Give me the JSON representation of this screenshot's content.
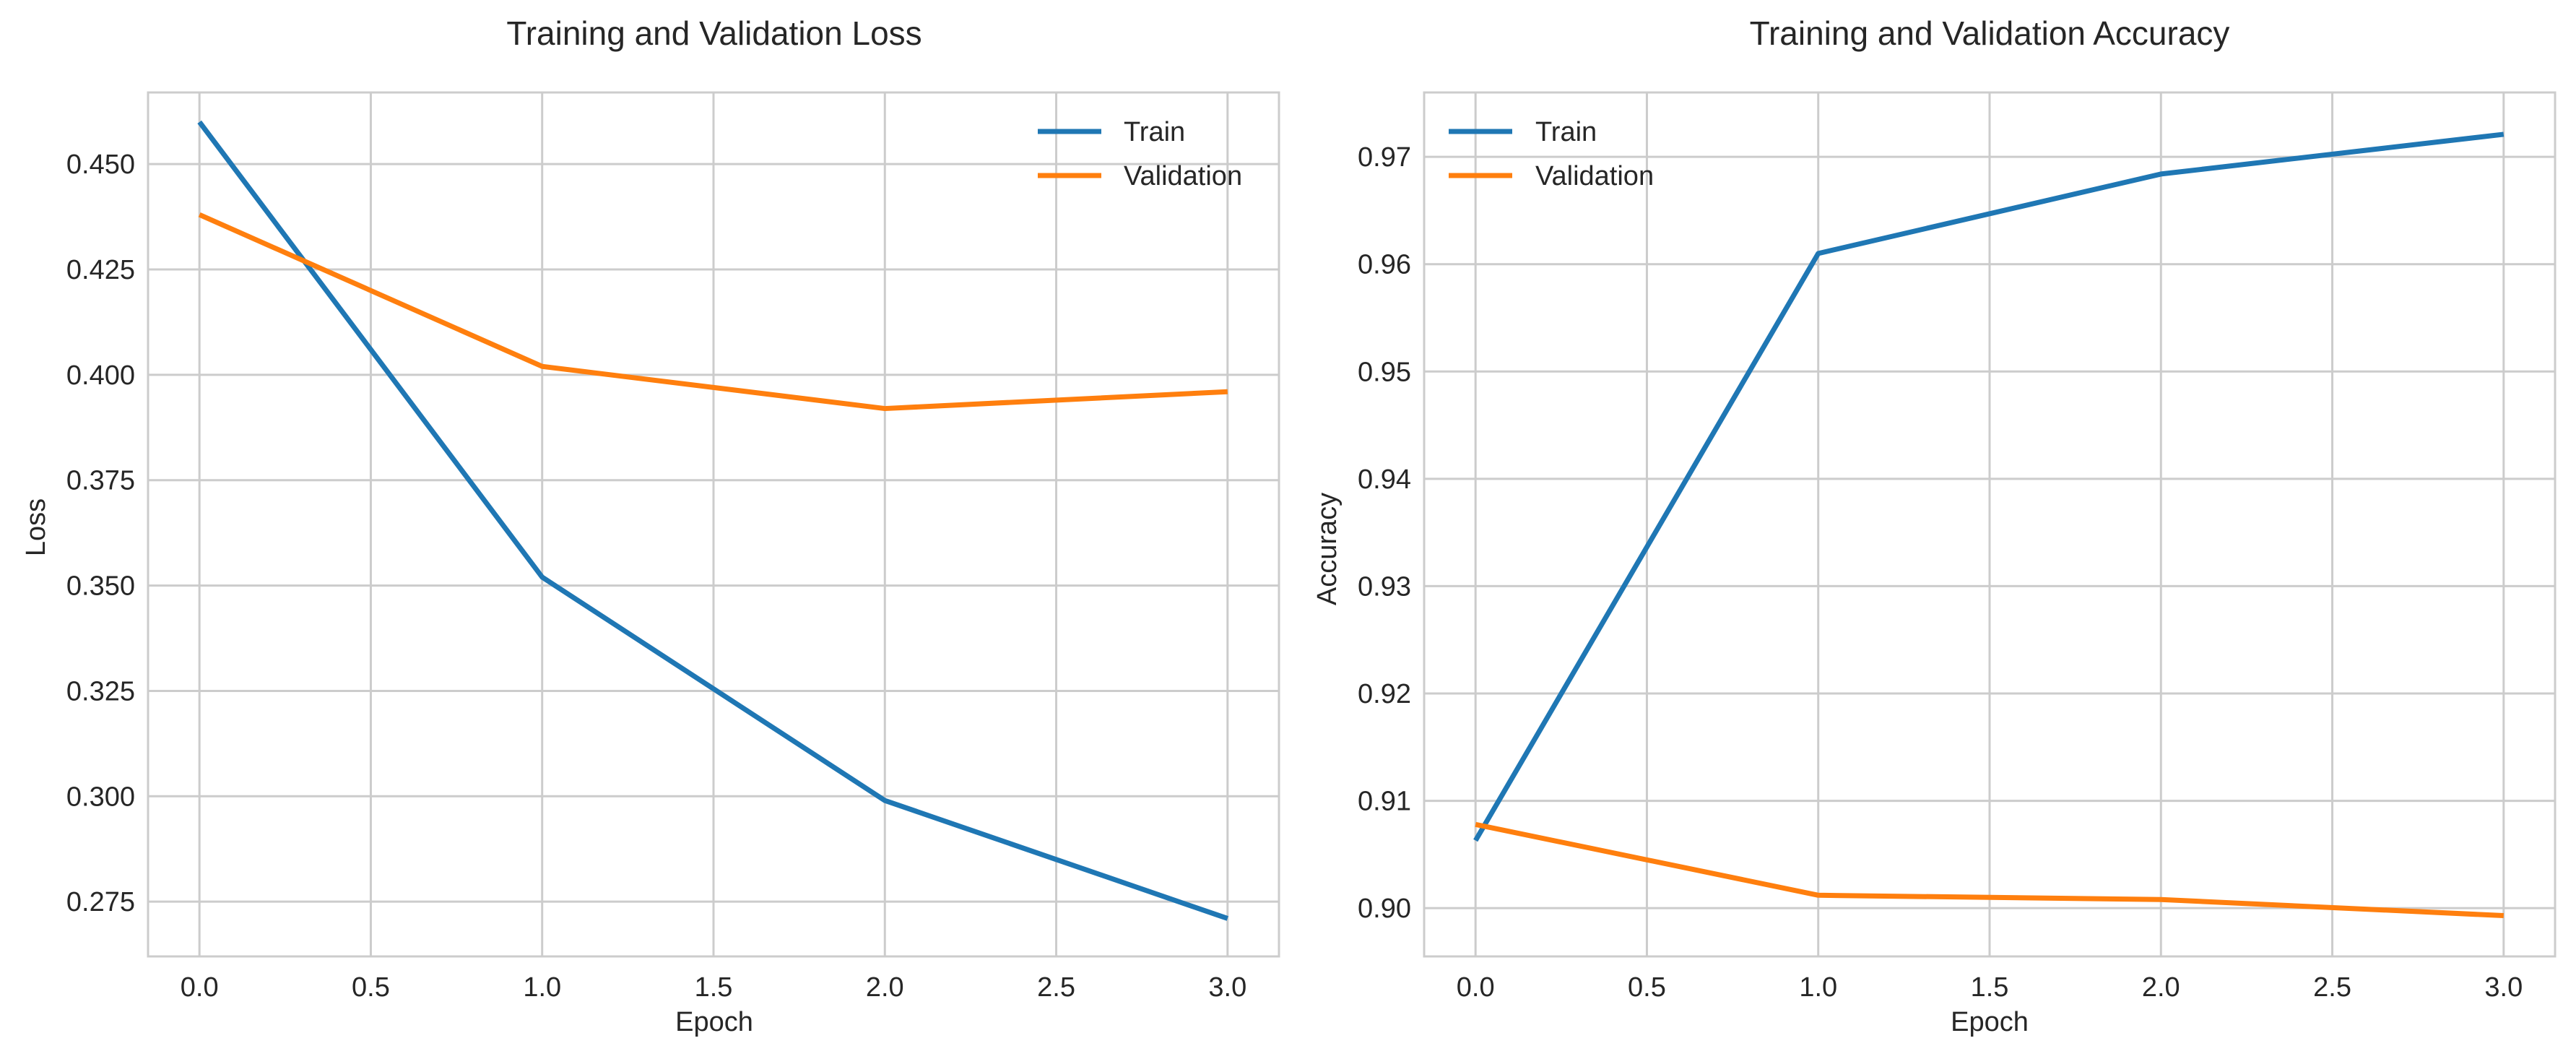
{
  "colors": {
    "train": "#1f77b4",
    "validation": "#ff7f0e",
    "grid": "#cccccc",
    "frame": "#cccccc",
    "text": "#262626",
    "background": "#ffffff"
  },
  "chart_data": [
    {
      "type": "line",
      "title": "Training and Validation Loss",
      "xlabel": "Epoch",
      "ylabel": "Loss",
      "xlim": [
        -0.15,
        3.15
      ],
      "ylim": [
        0.262,
        0.467
      ],
      "xticks": [
        0.0,
        0.5,
        1.0,
        1.5,
        2.0,
        2.5,
        3.0
      ],
      "xtick_labels": [
        "0.0",
        "0.5",
        "1.0",
        "1.5",
        "2.0",
        "2.5",
        "3.0"
      ],
      "yticks": [
        0.275,
        0.3,
        0.325,
        0.35,
        0.375,
        0.4,
        0.425,
        0.45
      ],
      "ytick_labels": [
        "0.275",
        "0.300",
        "0.325",
        "0.350",
        "0.375",
        "0.400",
        "0.425",
        "0.450"
      ],
      "grid": true,
      "legend_position": "top-right",
      "x": [
        0,
        1,
        2,
        3
      ],
      "series": [
        {
          "name": "Train",
          "color_key": "train",
          "values": [
            0.46,
            0.352,
            0.299,
            0.271
          ]
        },
        {
          "name": "Validation",
          "color_key": "validation",
          "values": [
            0.438,
            0.402,
            0.392,
            0.396
          ]
        }
      ]
    },
    {
      "type": "line",
      "title": "Training and Validation Accuracy",
      "xlabel": "Epoch",
      "ylabel": "Accuracy",
      "xlim": [
        -0.15,
        3.15
      ],
      "ylim": [
        0.8955,
        0.976
      ],
      "xticks": [
        0.0,
        0.5,
        1.0,
        1.5,
        2.0,
        2.5,
        3.0
      ],
      "xtick_labels": [
        "0.0",
        "0.5",
        "1.0",
        "1.5",
        "2.0",
        "2.5",
        "3.0"
      ],
      "yticks": [
        0.9,
        0.91,
        0.92,
        0.93,
        0.94,
        0.95,
        0.96,
        0.97
      ],
      "ytick_labels": [
        "0.90",
        "0.91",
        "0.92",
        "0.93",
        "0.94",
        "0.95",
        "0.96",
        "0.97"
      ],
      "grid": true,
      "legend_position": "top-left",
      "x": [
        0,
        1,
        2,
        3
      ],
      "series": [
        {
          "name": "Train",
          "color_key": "train",
          "values": [
            0.9063,
            0.961,
            0.9684,
            0.9721
          ]
        },
        {
          "name": "Validation",
          "color_key": "validation",
          "values": [
            0.9078,
            0.9012,
            0.9008,
            0.8993
          ]
        }
      ]
    }
  ]
}
